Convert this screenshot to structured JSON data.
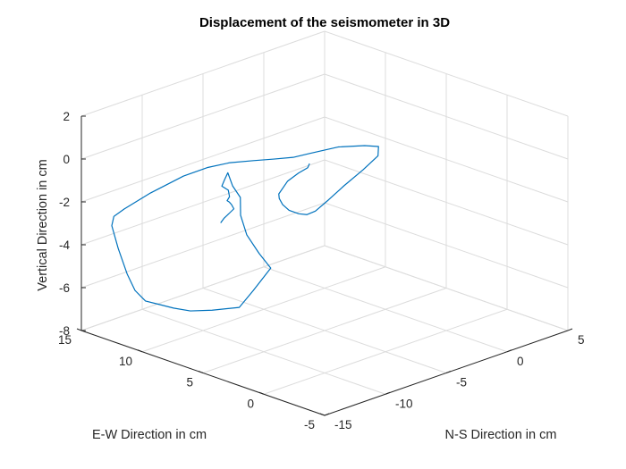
{
  "chart_data": {
    "type": "line",
    "projection": "3d",
    "title": "Displacement of the seismometer in 3D",
    "xlabel": "N-S Direction in cm",
    "ylabel": "E-W Direction in cm",
    "zlabel": "Vertical Direction in cm",
    "xlim": [
      -15,
      5
    ],
    "ylim": [
      -5,
      15
    ],
    "zlim": [
      -8,
      2
    ],
    "xticks": [
      -15,
      -10,
      -5,
      0,
      5
    ],
    "yticks": [
      -5,
      0,
      5,
      10,
      15
    ],
    "zticks": [
      -8,
      -6,
      -4,
      -2,
      0,
      2
    ],
    "grid": true,
    "line_color": "#0072BD",
    "series": [
      {
        "points": [
          [
            -15.79,
            2.76,
            -0.4
          ],
          [
            -14.83,
            3.43,
            -0.5
          ],
          [
            -13.33,
            4.53,
            -0.8
          ],
          [
            -11.82,
            5.64,
            -1.1
          ],
          [
            -10.89,
            6.78,
            -1.3
          ],
          [
            -10.21,
            7.62,
            -1.5
          ],
          [
            -9.88,
            8.14,
            -1.6
          ],
          [
            -9.31,
            8.51,
            -1.6
          ],
          [
            -8.34,
            9.58,
            -1.7
          ],
          [
            -7.87,
            10.58,
            -1.8
          ],
          [
            -6.76,
            11.47,
            -1.9
          ],
          [
            -5.8,
            12.16,
            -1.9
          ],
          [
            -6.13,
            11.44,
            -2.3
          ],
          [
            -6.17,
            10.76,
            -2.7
          ],
          [
            -7.5,
            9.41,
            -3.0
          ],
          [
            -8.3,
            8.1,
            -3.5
          ],
          [
            -8.71,
            6.68,
            -4.0
          ],
          [
            -8.7,
            5.73,
            -4.5
          ],
          [
            -10.8,
            5.07,
            -5.0
          ],
          [
            -11.85,
            5.17,
            -5.6
          ],
          [
            -13.04,
            6.21,
            -5.7
          ],
          [
            -14.02,
            7.02,
            -5.7
          ],
          [
            -14.63,
            7.79,
            -5.6
          ],
          [
            -15.07,
            8.73,
            -5.5
          ],
          [
            -15.45,
            9.28,
            -5.4
          ],
          [
            -15.65,
            9.94,
            -5.0
          ],
          [
            -15.54,
            10.7,
            -4.4
          ],
          [
            -15.19,
            11.78,
            -3.5
          ],
          [
            -14.78,
            12.72,
            -2.7
          ],
          [
            -14.12,
            13.21,
            -2.5
          ],
          [
            -13.31,
            13.16,
            -2.3
          ],
          [
            -11.87,
            12.45,
            -1.7
          ],
          [
            -10.28,
            11.32,
            -1.0
          ],
          [
            -9.26,
            10.32,
            -0.6
          ],
          [
            -8.31,
            9.47,
            -0.4
          ],
          [
            -7.36,
            8.49,
            -0.3
          ],
          [
            -6.84,
            7.33,
            -0.1
          ],
          [
            -6.1,
            6.49,
            0.0
          ],
          [
            -5.47,
            5.77,
            0.2
          ],
          [
            -4.29,
            4.6,
            0.5
          ],
          [
            -3.29,
            3.42,
            0.6
          ],
          [
            -2.83,
            2.74,
            0.6
          ],
          [
            -2.93,
            2.68,
            0.2
          ],
          [
            -3.43,
            3.41,
            -0.5
          ],
          [
            -4.06,
            4.34,
            -1.3
          ],
          [
            -4.62,
            5.07,
            -2.0
          ],
          [
            -5.2,
            5.56,
            -2.5
          ],
          [
            -5.47,
            6.0,
            -2.7
          ],
          [
            -5.69,
            6.43,
            -2.7
          ],
          [
            -6.19,
            6.73,
            -2.5
          ],
          [
            -6.54,
            6.91,
            -2.2
          ],
          [
            -6.72,
            7.01,
            -1.9
          ],
          [
            -6.71,
            7.06,
            -1.7
          ],
          [
            -6.09,
            6.95,
            -1.2
          ],
          [
            -5.46,
            6.69,
            -0.9
          ],
          [
            -4.95,
            6.44,
            -0.7
          ],
          [
            -4.89,
            6.35,
            -0.5
          ]
        ]
      }
    ]
  }
}
